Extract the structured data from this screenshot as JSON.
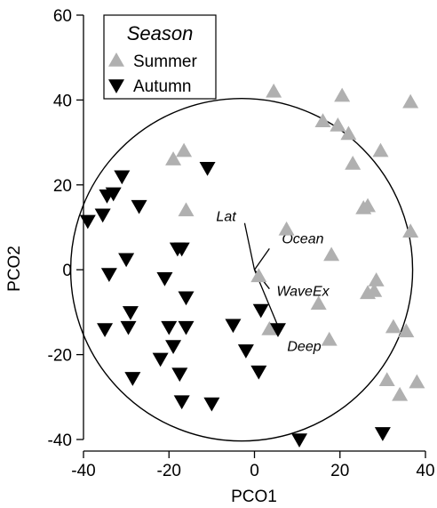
{
  "chart_data": {
    "type": "scatter",
    "title": "",
    "xlabel": "PCO1",
    "ylabel": "PCO2",
    "xlim": [
      -40,
      40
    ],
    "ylim": [
      -40,
      60
    ],
    "xticks": [
      -40,
      -20,
      0,
      20,
      40
    ],
    "yticks": [
      -40,
      -20,
      0,
      20,
      40,
      60
    ],
    "xtick_labels": [
      "-40",
      "-20",
      "0",
      "20",
      "40"
    ],
    "ytick_labels": [
      "-40",
      "-20",
      "0",
      "20",
      "40",
      "60"
    ],
    "grid": false,
    "legend": {
      "title": "Season",
      "placement": "top-left"
    },
    "series": [
      {
        "name": "Summer",
        "marker": "triangle-up",
        "color": "#b0b0b0",
        "points": [
          [
            4.5,
            42
          ],
          [
            20.5,
            41
          ],
          [
            36.5,
            39.5
          ],
          [
            16,
            35
          ],
          [
            19.5,
            34
          ],
          [
            22,
            32
          ],
          [
            29.5,
            28
          ],
          [
            -16.5,
            28
          ],
          [
            -19,
            26
          ],
          [
            23,
            25
          ],
          [
            26.5,
            15
          ],
          [
            25.5,
            14.5
          ],
          [
            -16,
            14
          ],
          [
            7.5,
            9.5
          ],
          [
            36.5,
            9
          ],
          [
            18,
            3.5
          ],
          [
            1,
            -1.5
          ],
          [
            28.5,
            -2.5
          ],
          [
            28,
            -5
          ],
          [
            26.5,
            -5.5
          ],
          [
            15,
            -8
          ],
          [
            32.5,
            -13.5
          ],
          [
            35.5,
            -14.5
          ],
          [
            3.5,
            -14
          ],
          [
            17.5,
            -16.5
          ],
          [
            31,
            -26
          ],
          [
            38,
            -26.5
          ],
          [
            34,
            -29.5
          ]
        ]
      },
      {
        "name": "Autumn",
        "marker": "triangle-down",
        "color": "#000000",
        "points": [
          [
            -11,
            24
          ],
          [
            -31,
            22
          ],
          [
            -33,
            18
          ],
          [
            -34.5,
            17.5
          ],
          [
            -27,
            15
          ],
          [
            -35.5,
            13
          ],
          [
            -39,
            11.5
          ],
          [
            -17,
            5
          ],
          [
            -18,
            5
          ],
          [
            -30,
            2.5
          ],
          [
            -34,
            -1
          ],
          [
            -21,
            -2
          ],
          [
            -16,
            -6.5
          ],
          [
            -29,
            -10
          ],
          [
            -20,
            -13.5
          ],
          [
            -16,
            -13.5
          ],
          [
            -29.5,
            -13.5
          ],
          [
            -35,
            -14
          ],
          [
            -5,
            -13
          ],
          [
            1.5,
            -9.5
          ],
          [
            5.5,
            -14
          ],
          [
            -19,
            -18
          ],
          [
            -2,
            -19
          ],
          [
            -22,
            -21
          ],
          [
            -17.5,
            -24.5
          ],
          [
            1,
            -24
          ],
          [
            -28.5,
            -25.5
          ],
          [
            -17,
            -31
          ],
          [
            -10,
            -31.5
          ],
          [
            10.5,
            -40
          ],
          [
            30,
            -38.5
          ]
        ]
      }
    ],
    "circle": {
      "center": [
        -3,
        0
      ],
      "radius_data_x": 40
    },
    "vectors": [
      {
        "label": "Lat",
        "dx": -2.3,
        "dy": 11
      },
      {
        "label": "Ocean",
        "dx": 3.5,
        "dy": 5
      },
      {
        "label": "WaveEx",
        "dx": 3.5,
        "dy": -4.5
      },
      {
        "label": "Deep",
        "dx": 6,
        "dy": -14.5
      }
    ]
  }
}
